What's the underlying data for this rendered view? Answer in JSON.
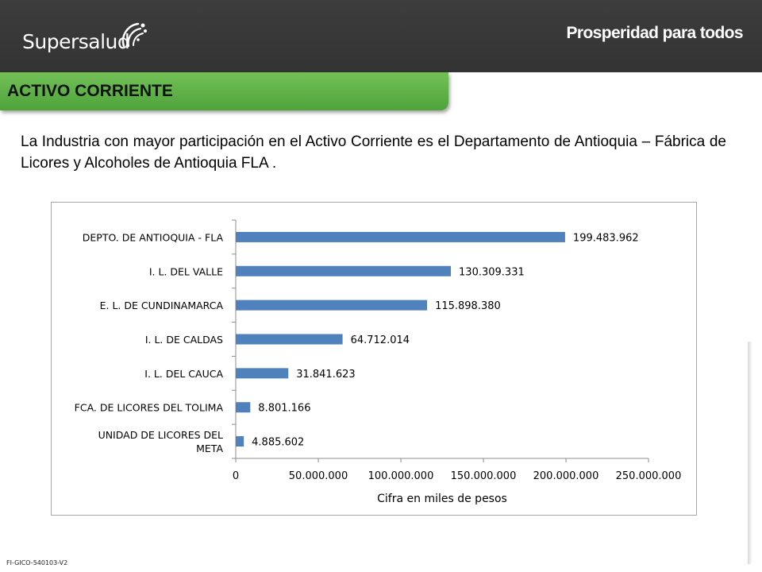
{
  "header": {
    "logo_text": "Supersalud",
    "tagline": "Prosperidad para todos"
  },
  "section": {
    "title": "ACTIVO CORRIENTE"
  },
  "description": "La Industria con mayor participación en el Activo Corriente es el Departamento de Antioquia – Fábrica de Licores y Alcoholes de Antioquia FLA .",
  "footer": {
    "code": "FI-GICO-540103-V2"
  },
  "colors": {
    "header_bg": "#363636",
    "section_green": "#5fb548",
    "bar_blue": "#4f81bd"
  },
  "chart_data": {
    "type": "bar",
    "orientation": "horizontal",
    "categories": [
      [
        "DEPTO. DE ANTIOQUIA - FLA"
      ],
      [
        "I. L. DEL VALLE"
      ],
      [
        "E. L. DE CUNDINAMARCA"
      ],
      [
        "I. L. DE CALDAS"
      ],
      [
        "I. L. DEL CAUCA"
      ],
      [
        "FCA. DE LICORES DEL TOLIMA"
      ],
      [
        "UNIDAD DE LICORES DEL",
        "META"
      ]
    ],
    "values": [
      199483962,
      130309331,
      115898380,
      64712014,
      31841623,
      8801166,
      4885602
    ],
    "data_labels": [
      "199.483.962",
      "130.309.331",
      "115.898.380",
      "64.712.014",
      "31.841.623",
      "8.801.166",
      "4.885.602"
    ],
    "xlabel": "Cifra en miles de pesos",
    "xlim": [
      0,
      250000000
    ],
    "xticks": [
      0,
      50000000,
      100000000,
      150000000,
      200000000,
      250000000
    ],
    "xtick_labels": [
      "0",
      "50.000.000",
      "100.000.000",
      "150.000.000",
      "200.000.000",
      "250.000.000"
    ],
    "grid": false,
    "legend": "none"
  }
}
